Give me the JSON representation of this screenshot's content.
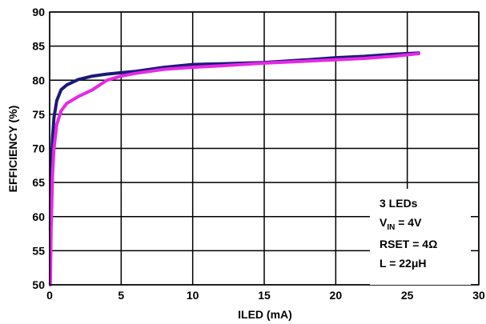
{
  "chart_data": {
    "type": "line",
    "title": "",
    "xlabel": "ILED (mA)",
    "ylabel": "EFFICIENCY (%)",
    "xlim": [
      0,
      30
    ],
    "ylim": [
      50,
      90
    ],
    "xticks": [
      0,
      5,
      10,
      15,
      20,
      25,
      30
    ],
    "yticks": [
      50,
      55,
      60,
      65,
      70,
      75,
      80,
      85,
      90
    ],
    "grid": true,
    "series": [
      {
        "color": "#1a1a7a",
        "x": [
          0.05,
          0.1,
          0.2,
          0.3,
          0.5,
          0.8,
          1.2,
          2,
          3,
          4,
          5,
          6,
          8,
          10,
          12,
          15,
          18,
          20,
          22,
          24,
          25.8
        ],
        "y": [
          58,
          66,
          71.5,
          74.5,
          77,
          78.6,
          79.3,
          80.1,
          80.6,
          80.9,
          81.1,
          81.3,
          81.9,
          82.3,
          82.4,
          82.6,
          83.0,
          83.3,
          83.5,
          83.8,
          84.0
        ]
      },
      {
        "color": "#e628e6",
        "x": [
          0.05,
          0.1,
          0.2,
          0.3,
          0.5,
          0.8,
          1.2,
          2,
          3,
          4,
          5,
          6,
          8,
          10,
          12,
          15,
          18,
          20,
          22,
          24,
          25.8
        ],
        "y": [
          50,
          58,
          66,
          70,
          73.5,
          75.5,
          76.6,
          77.6,
          78.6,
          80.0,
          80.6,
          81.0,
          81.6,
          81.9,
          82.1,
          82.5,
          82.8,
          83.0,
          83.2,
          83.5,
          83.9
        ]
      }
    ],
    "annotations": {
      "line1": "3 LEDs",
      "line2_main": "V",
      "line2_sub": "IN",
      "line2_rest": " = 4V",
      "line3": "RSET = 4Ω",
      "line4": "L = 22μH"
    }
  }
}
